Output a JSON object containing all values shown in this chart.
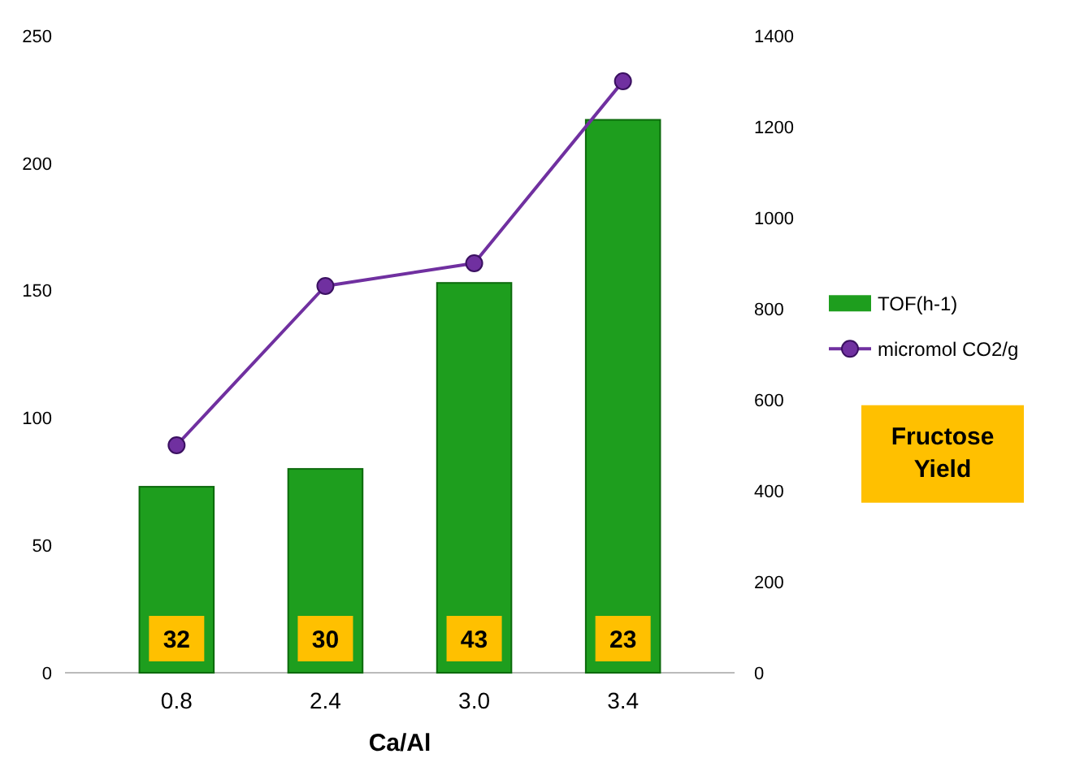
{
  "chart_data": {
    "type": "bar",
    "categories": [
      "0.8",
      "2.4",
      "3.0",
      "3.4"
    ],
    "xlabel": "Ca/Al",
    "series": [
      {
        "name": "TOF(h-1)",
        "color": "#1e9e1e",
        "values": [
          73,
          80,
          153,
          217
        ]
      },
      {
        "name": "micromol CO2/g",
        "type": "line",
        "axis": "y2",
        "color": "#7030a0",
        "values": [
          500,
          850,
          900,
          1300
        ]
      }
    ],
    "ylim": [
      0,
      250
    ],
    "yticks": [
      0,
      50,
      100,
      150,
      200,
      250
    ],
    "y2lim": [
      0,
      1400
    ],
    "y2ticks": [
      0,
      200,
      400,
      600,
      800,
      1000,
      1200,
      1400
    ],
    "marker": "circle",
    "legend": "right",
    "annotations": [
      {
        "text": "32",
        "x": "0.8"
      },
      {
        "text": "30",
        "x": "2.4"
      },
      {
        "text": "43",
        "x": "3.0"
      },
      {
        "text": "23",
        "x": "3.4"
      },
      "Fructose Yield"
    ]
  }
}
